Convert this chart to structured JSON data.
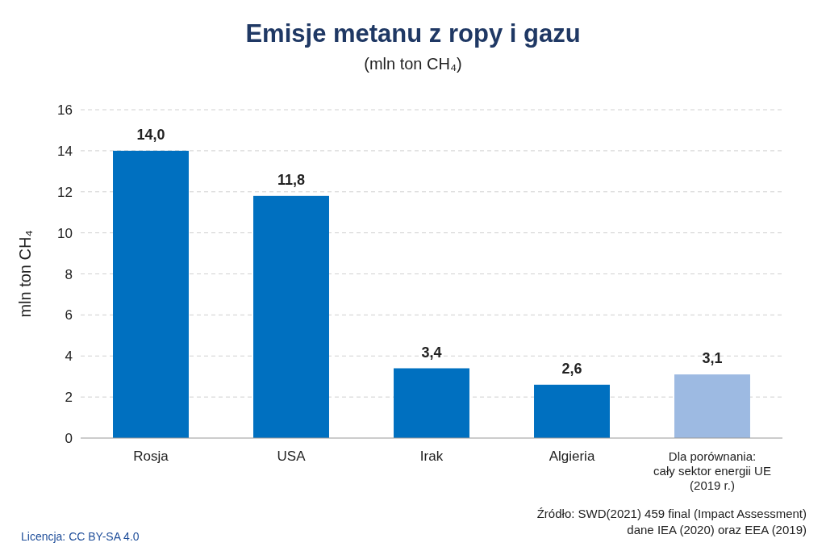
{
  "chart_data": {
    "type": "bar",
    "title": "Emisje metanu z ropy i gazu",
    "subtitle": "(mln ton CH₄)",
    "ylabel": "mln ton CH₄",
    "categories": [
      "Rosja",
      "USA",
      "Irak",
      "Algieria",
      "Dla porównania:\ncały sektor energii UE\n(2019 r.)"
    ],
    "values": [
      14.0,
      11.8,
      3.4,
      2.6,
      3.1
    ],
    "colors": [
      "#0070c0",
      "#0070c0",
      "#0070c0",
      "#0070c0",
      "#9dbae2"
    ],
    "value_labels": [
      "14,0",
      "11,8",
      "3,4",
      "2,6",
      "3,1"
    ],
    "ylim": [
      0,
      16
    ],
    "yticks": [
      0,
      2,
      4,
      6,
      8,
      10,
      12,
      14,
      16
    ],
    "grid": "y",
    "annotations": [
      "Źródło: SWD(2021) 459 final (Impact Assessment)\ndane IEA (2020) oraz EEA (2019)",
      "Licencja: CC BY-SA 4.0"
    ]
  }
}
